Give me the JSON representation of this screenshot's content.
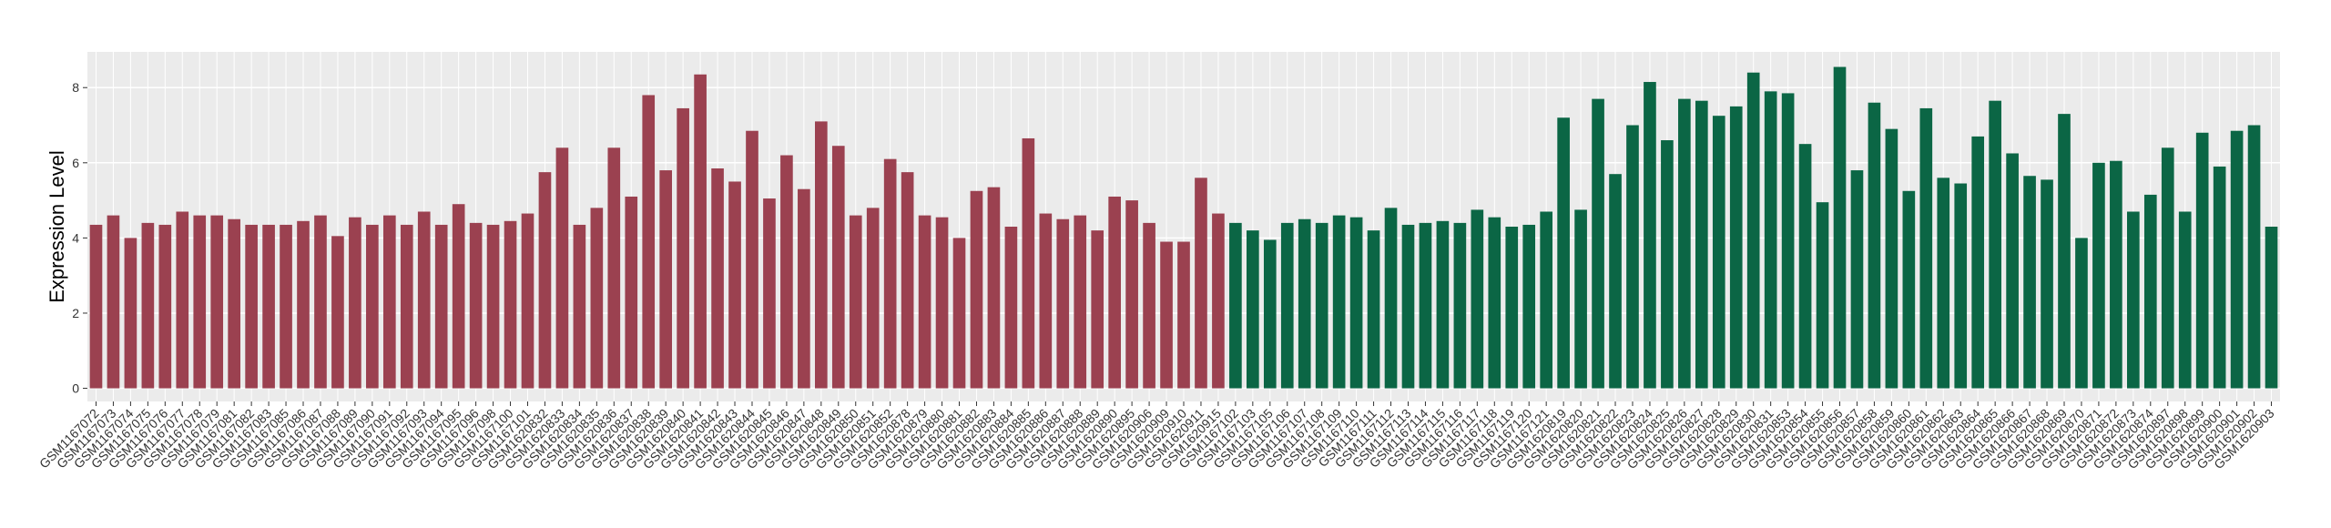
{
  "chart_data": {
    "type": "bar",
    "y_label": "Expression Level",
    "categories": [
      "GSM1167072",
      "GSM1167073",
      "GSM1167074",
      "GSM1167075",
      "GSM1167076",
      "GSM1167077",
      "GSM1167078",
      "GSM1167079",
      "GSM1167081",
      "GSM1167082",
      "GSM1167083",
      "GSM1167085",
      "GSM1167086",
      "GSM1167087",
      "GSM1167088",
      "GSM1167089",
      "GSM1167090",
      "GSM1167091",
      "GSM1167092",
      "GSM1167093",
      "GSM1167094",
      "GSM1167095",
      "GSM1167096",
      "GSM1167098",
      "GSM1167100",
      "GSM1167101",
      "GSM1620832",
      "GSM1620833",
      "GSM1620834",
      "GSM1620835",
      "GSM1620836",
      "GSM1620837",
      "GSM1620838",
      "GSM1620839",
      "GSM1620840",
      "GSM1620841",
      "GSM1620842",
      "GSM1620843",
      "GSM1620844",
      "GSM1620845",
      "GSM1620846",
      "GSM1620847",
      "GSM1620848",
      "GSM1620849",
      "GSM1620850",
      "GSM1620851",
      "GSM1620852",
      "GSM1620878",
      "GSM1620879",
      "GSM1620880",
      "GSM1620881",
      "GSM1620882",
      "GSM1620883",
      "GSM1620884",
      "GSM1620885",
      "GSM1620886",
      "GSM1620887",
      "GSM1620888",
      "GSM1620889",
      "GSM1620890",
      "GSM1620895",
      "GSM1620906",
      "GSM1620909",
      "GSM1620910",
      "GSM1620911",
      "GSM1620915",
      "GSM1167102",
      "GSM1167103",
      "GSM1167105",
      "GSM1167106",
      "GSM1167107",
      "GSM1167108",
      "GSM1167109",
      "GSM1167110",
      "GSM1167111",
      "GSM1167112",
      "GSM1167113",
      "GSM1167114",
      "GSM1167115",
      "GSM1167116",
      "GSM1167117",
      "GSM1167118",
      "GSM1167119",
      "GSM1167120",
      "GSM1167121",
      "GSM1620819",
      "GSM1620820",
      "GSM1620821",
      "GSM1620822",
      "GSM1620823",
      "GSM1620824",
      "GSM1620825",
      "GSM1620826",
      "GSM1620827",
      "GSM1620828",
      "GSM1620829",
      "GSM1620830",
      "GSM1620831",
      "GSM1620853",
      "GSM1620854",
      "GSM1620855",
      "GSM1620856",
      "GSM1620857",
      "GSM1620858",
      "GSM1620859",
      "GSM1620860",
      "GSM1620861",
      "GSM1620862",
      "GSM1620863",
      "GSM1620864",
      "GSM1620865",
      "GSM1620866",
      "GSM1620867",
      "GSM1620868",
      "GSM1620869",
      "GSM1620870",
      "GSM1620871",
      "GSM1620872",
      "GSM1620873",
      "GSM1620874",
      "GSM1620897",
      "GSM1620898",
      "GSM1620899",
      "GSM1620900",
      "GSM1620901",
      "GSM1620902",
      "GSM1620903"
    ],
    "series": [
      {
        "color": "#9b4150",
        "values": [
          4.35,
          4.6,
          4.0,
          4.4,
          4.35,
          4.7,
          4.6,
          4.6,
          4.5,
          4.35,
          4.35,
          4.35,
          4.45,
          4.6,
          4.05,
          4.55,
          4.35,
          4.6,
          4.35,
          4.7,
          4.35,
          4.9,
          4.4,
          4.35,
          4.45,
          4.65,
          5.75,
          6.4,
          4.35,
          4.8,
          6.4,
          5.1,
          7.8,
          5.8,
          7.45,
          8.35,
          5.85,
          5.5,
          6.85,
          5.05,
          6.2,
          5.3,
          7.1,
          6.45,
          4.6,
          4.8,
          6.1,
          5.75,
          4.6,
          4.55,
          4.0,
          5.25,
          5.35,
          4.3,
          6.65,
          4.65,
          4.5,
          4.6,
          4.2,
          5.1,
          5.0,
          4.4,
          3.9,
          3.9,
          5.6,
          4.65,
          null,
          null,
          null,
          null,
          null,
          null,
          null,
          null,
          null,
          null,
          null,
          null,
          null,
          null,
          null,
          null,
          null,
          null,
          null,
          null,
          null,
          null,
          null,
          null,
          null,
          null,
          null,
          null,
          null,
          null,
          null,
          null,
          null,
          null,
          null,
          null,
          null,
          null,
          null,
          null,
          null,
          null,
          null,
          null,
          null,
          null,
          null,
          null,
          null,
          null,
          null,
          null,
          null,
          null,
          null,
          null,
          null,
          null,
          null,
          null,
          null
        ]
      },
      {
        "color": "#0b6645",
        "values": [
          null,
          null,
          null,
          null,
          null,
          null,
          null,
          null,
          null,
          null,
          null,
          null,
          null,
          null,
          null,
          null,
          null,
          null,
          null,
          null,
          null,
          null,
          null,
          null,
          null,
          null,
          null,
          null,
          null,
          null,
          null,
          null,
          null,
          null,
          null,
          null,
          null,
          null,
          null,
          null,
          null,
          null,
          null,
          null,
          null,
          null,
          null,
          null,
          null,
          null,
          null,
          null,
          null,
          null,
          null,
          null,
          null,
          null,
          null,
          null,
          null,
          null,
          null,
          null,
          null,
          null,
          4.4,
          4.2,
          3.95,
          4.4,
          4.5,
          4.4,
          4.6,
          4.55,
          4.2,
          4.8,
          4.35,
          4.4,
          4.45,
          4.4,
          4.75,
          4.55,
          4.3,
          4.35,
          4.7,
          7.2,
          4.75,
          7.7,
          5.7,
          7.0,
          8.15,
          6.6,
          7.7,
          7.65,
          7.25,
          7.5,
          8.4,
          7.9,
          7.85,
          6.5,
          4.95,
          8.55,
          5.8,
          7.6,
          6.9,
          5.25,
          7.45,
          5.6,
          5.45,
          6.7,
          7.65,
          6.25,
          5.65,
          5.55,
          7.3,
          4.0,
          6.0,
          6.05,
          4.7,
          5.15,
          6.4,
          4.7,
          6.8,
          5.9,
          6.85,
          7.0,
          4.3
        ]
      }
    ],
    "ylim": [
      -0.35,
      8.95
    ],
    "yticks": [
      0,
      2,
      4,
      6,
      8
    ],
    "grid": true
  }
}
